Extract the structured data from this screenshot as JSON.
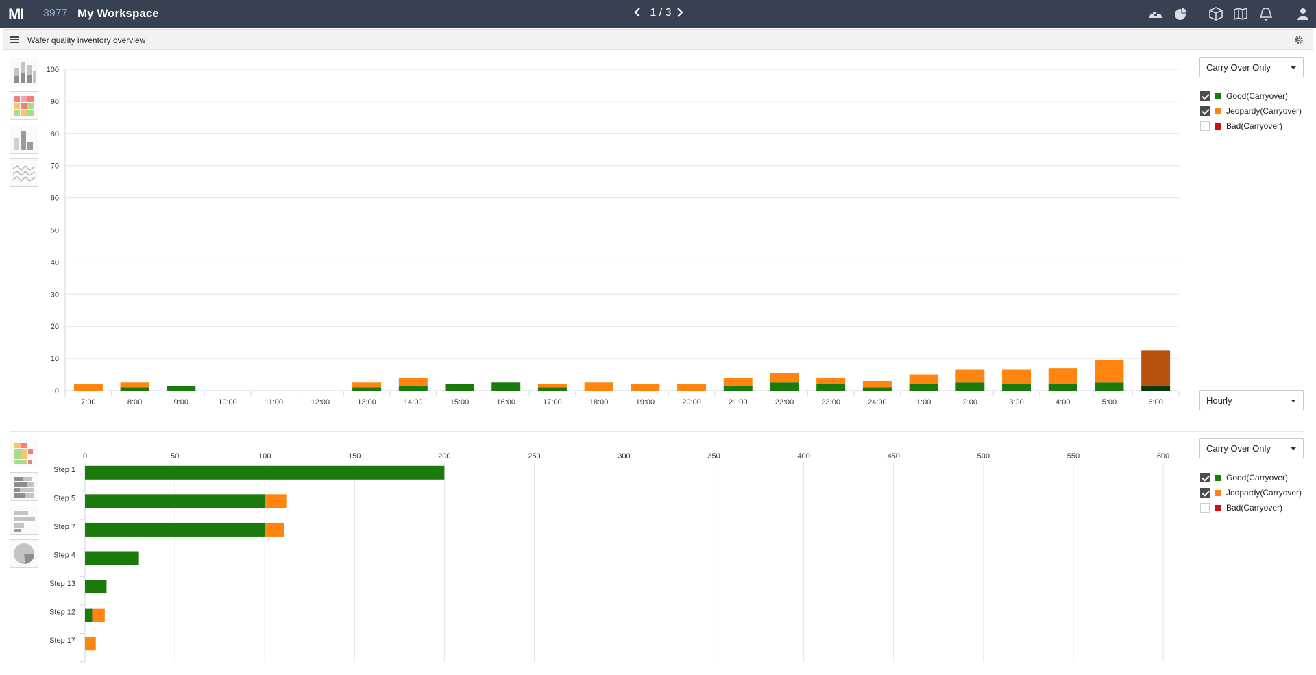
{
  "app": {
    "logo": "MI",
    "workspace_id": "3977",
    "workspace_title": "My Workspace",
    "pager": "1 / 3"
  },
  "panel": {
    "title": "Wafer quality inventory overview"
  },
  "colors": {
    "good": "#1a7a0c",
    "jeopardy": "#ff8410",
    "jeopardy_highlight": "#b8520d",
    "good_highlight": "#0d3b07",
    "bad": "#d10e0e"
  },
  "top": {
    "dropdown": "Carry Over Only",
    "interval_dropdown": "Hourly",
    "legend": [
      {
        "label": "Good(Carryover)",
        "checked": true,
        "color": "#1a7a0c"
      },
      {
        "label": "Jeopardy(Carryover)",
        "checked": true,
        "color": "#ff8410"
      },
      {
        "label": "Bad(Carryover)",
        "checked": false,
        "color": "#d10e0e"
      }
    ]
  },
  "bottom": {
    "dropdown": "Carry Over Only",
    "legend": [
      {
        "label": "Good(Carryover)",
        "checked": true,
        "color": "#1a7a0c"
      },
      {
        "label": "Jeopardy(Carryover)",
        "checked": true,
        "color": "#ff8410"
      },
      {
        "label": "Bad(Carryover)",
        "checked": false,
        "color": "#d10e0e"
      }
    ]
  },
  "chart_data": [
    {
      "type": "bar",
      "stacked": true,
      "categories": [
        "7:00",
        "8:00",
        "9:00",
        "10:00",
        "11:00",
        "12:00",
        "13:00",
        "14:00",
        "15:00",
        "16:00",
        "17:00",
        "18:00",
        "19:00",
        "20:00",
        "21:00",
        "22:00",
        "23:00",
        "24:00",
        "1:00",
        "2:00",
        "3:00",
        "4:00",
        "5:00",
        "6:00"
      ],
      "series": [
        {
          "name": "Good(Carryover)",
          "values": [
            0,
            1,
            1.5,
            0,
            0,
            0,
            1,
            1.5,
            2,
            2.5,
            1,
            0,
            0,
            0,
            1.5,
            2.5,
            2,
            1,
            2,
            2.5,
            2,
            2,
            2.5,
            1.5
          ]
        },
        {
          "name": "Jeopardy(Carryover)",
          "values": [
            2,
            1.5,
            0,
            0,
            0,
            0,
            1.5,
            2.5,
            0,
            0,
            1,
            2.5,
            2,
            2,
            2.5,
            3,
            2,
            2,
            3,
            4,
            4.5,
            5,
            7,
            11
          ]
        }
      ],
      "yticks": [
        0,
        10,
        20,
        30,
        40,
        50,
        60,
        70,
        80,
        90,
        100
      ],
      "ylim": [
        0,
        100
      ],
      "highlight_category": "6:00"
    },
    {
      "type": "bar",
      "orientation": "horizontal",
      "stacked": true,
      "categories": [
        "Step 1",
        "Step 5",
        "Step 7",
        "Step 4",
        "Step 13",
        "Step 12",
        "Step 17"
      ],
      "series": [
        {
          "name": "Good(Carryover)",
          "values": [
            200,
            100,
            100,
            30,
            12,
            4,
            0
          ]
        },
        {
          "name": "Jeopardy(Carryover)",
          "values": [
            0,
            12,
            11,
            0,
            0,
            7,
            6
          ]
        }
      ],
      "xticks": [
        0,
        50,
        100,
        150,
        200,
        250,
        300,
        350,
        400,
        450,
        500,
        550,
        600
      ],
      "xlim": [
        0,
        600
      ]
    }
  ]
}
